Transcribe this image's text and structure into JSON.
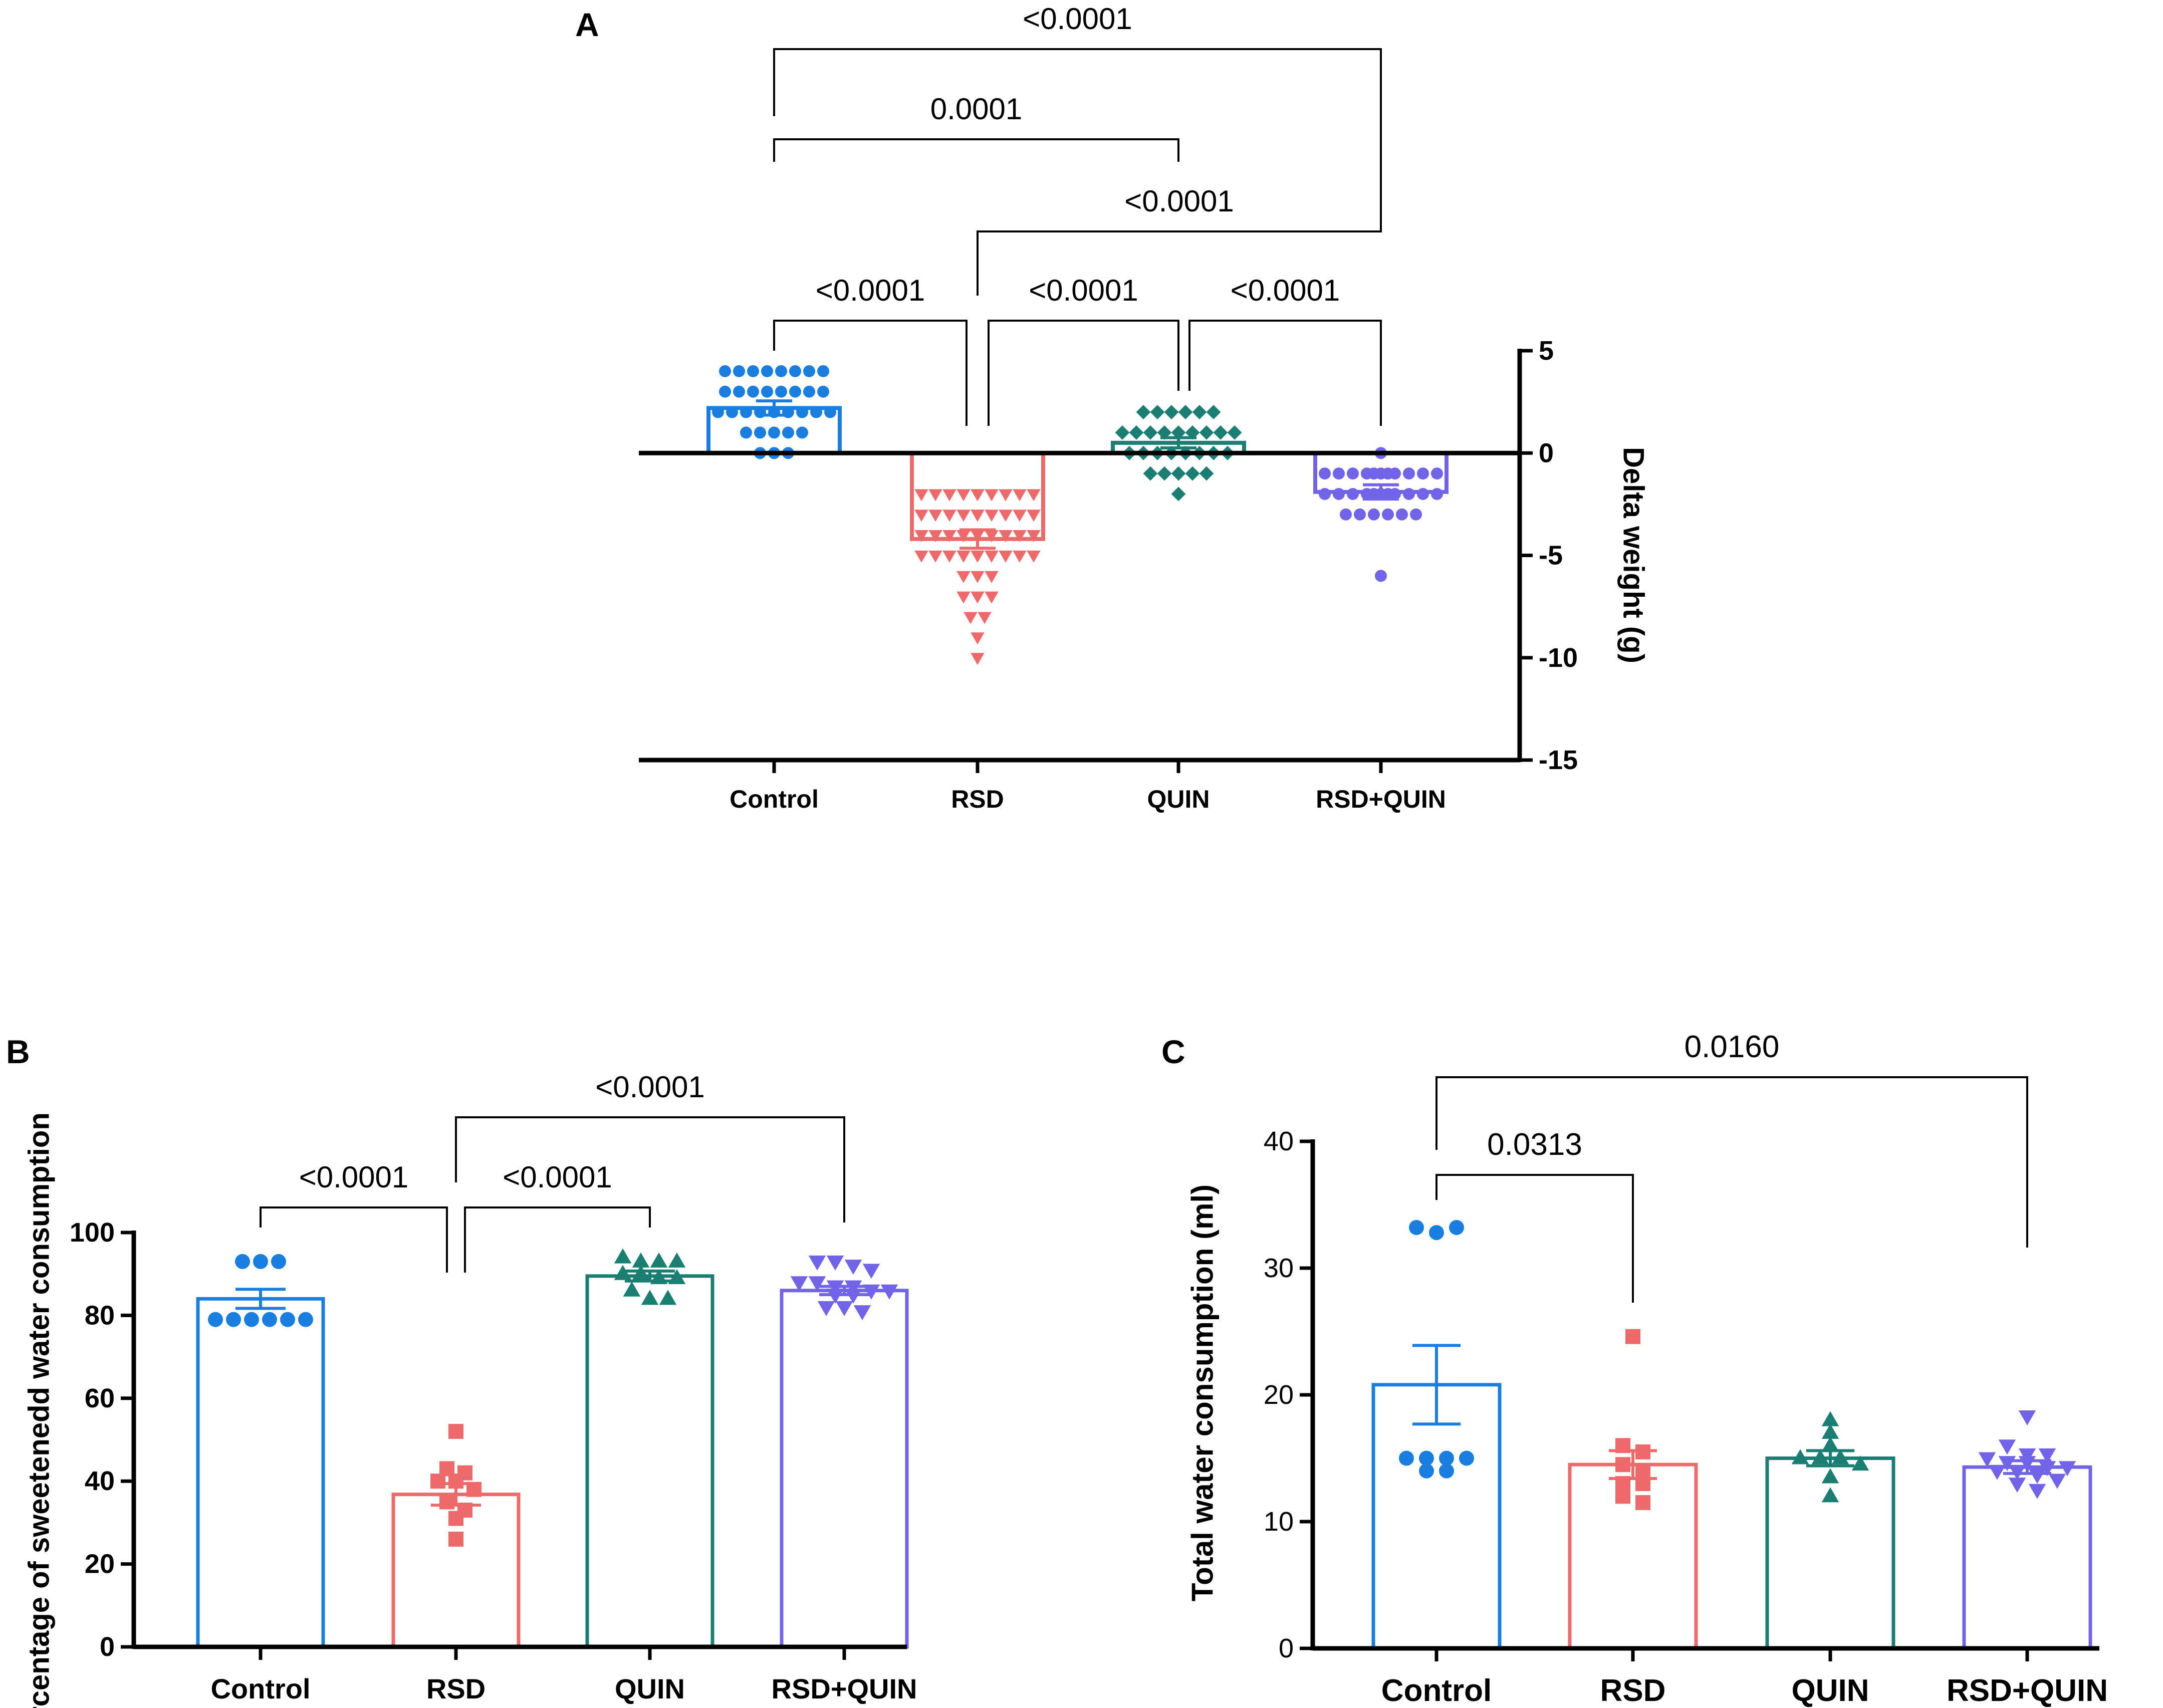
{
  "chart_data": [
    {
      "panel": "A",
      "type": "bar",
      "markers": "scatter",
      "categories": [
        "Control",
        "RSD",
        "QUIN",
        "RSD+QUIN"
      ],
      "means": [
        2.2,
        -4.2,
        0.5,
        -1.9
      ],
      "sem": [
        0.35,
        0.45,
        0.25,
        0.35
      ],
      "points": [
        [
          4,
          4,
          4,
          4,
          4,
          4,
          4,
          4,
          3,
          3,
          3,
          3,
          3,
          3,
          3,
          3,
          2,
          2,
          2,
          2,
          2,
          2,
          2,
          2,
          2,
          1,
          1,
          1,
          1,
          1,
          0,
          0,
          0
        ],
        [
          -2,
          -2,
          -2,
          -2,
          -2,
          -2,
          -2,
          -2,
          -2,
          -2,
          -3,
          -3,
          -3,
          -3,
          -3,
          -3,
          -3,
          -3,
          -3,
          -3,
          -4,
          -4,
          -4,
          -4,
          -4,
          -4,
          -4,
          -4,
          -4,
          -4,
          -4,
          -4,
          -5,
          -5,
          -5,
          -5,
          -5,
          -5,
          -5,
          -5,
          -5,
          -5,
          -5,
          -5,
          -6,
          -6,
          -6,
          -7,
          -7,
          -7,
          -8,
          -8,
          -9,
          -10
        ],
        [
          2,
          2,
          2,
          2,
          2,
          2,
          1,
          1,
          1,
          1,
          1,
          1,
          1,
          1,
          1,
          0,
          0,
          0,
          0,
          0,
          0,
          0,
          0,
          -1,
          -1,
          -1,
          -1,
          -1,
          -2
        ],
        [
          0,
          -1,
          -1,
          -1,
          -1,
          -1,
          -1,
          -1,
          -1,
          -1,
          -1,
          -1,
          -2,
          -2,
          -2,
          -2,
          -2,
          -2,
          -2,
          -2,
          -2,
          -2,
          -2,
          -3,
          -3,
          -3,
          -3,
          -3,
          -3,
          -6
        ]
      ],
      "ylim": [
        -15,
        5
      ],
      "yticks": [
        "5",
        "0",
        "-5",
        "-10",
        "-15"
      ],
      "ylabel": "Delta weight (g)",
      "yaxis_side": "right",
      "comparisons": [
        {
          "from": 0,
          "to": 3,
          "label": "<0.0001"
        },
        {
          "from": 0,
          "to": 2,
          "label": "0.0001"
        },
        {
          "from": 1,
          "to": 3,
          "label": "<0.0001"
        },
        {
          "from": 0,
          "to": 1,
          "label": "<0.0001"
        },
        {
          "from": 1,
          "to": 2,
          "label": "<0.0001"
        },
        {
          "from": 2,
          "to": 3,
          "label": "<0.0001"
        }
      ]
    },
    {
      "panel": "B",
      "type": "bar",
      "markers": "scatter",
      "categories": [
        "Control",
        "RSD",
        "QUIN",
        "RSD+QUIN"
      ],
      "means": [
        84,
        36.8,
        89.5,
        86
      ],
      "sem": [
        2.3,
        2.6,
        1.2,
        1.0
      ],
      "points": [
        [
          93,
          93,
          93,
          79,
          79,
          79,
          79,
          79,
          79
        ],
        [
          52,
          43,
          42,
          40,
          40,
          38,
          35,
          33,
          31,
          26
        ],
        [
          94,
          93,
          93,
          93,
          90,
          90,
          89,
          89,
          86,
          84,
          84
        ],
        [
          93,
          93,
          92,
          91,
          88,
          88,
          87,
          87,
          86,
          86,
          85,
          85,
          82,
          82,
          81
        ]
      ],
      "ylim": [
        0,
        100
      ],
      "yticks": [
        "0",
        "20",
        "40",
        "60",
        "80",
        "100"
      ],
      "ylabel": "Percentage of sweetenedd water consumption",
      "comparisons": [
        {
          "from": 1,
          "to": 3,
          "label": "<0.0001"
        },
        {
          "from": 0,
          "to": 1,
          "label": "<0.0001"
        },
        {
          "from": 1,
          "to": 2,
          "label": "<0.0001"
        }
      ]
    },
    {
      "panel": "C",
      "type": "bar",
      "markers": "scatter",
      "categories": [
        "Control",
        "RSD",
        "QUIN",
        "RSD+QUIN"
      ],
      "means": [
        20.8,
        14.5,
        15.0,
        14.3
      ],
      "sem": [
        3.1,
        1.1,
        0.6,
        0.5
      ],
      "points": [
        [
          33.2,
          32.8,
          33.2,
          15.0,
          15.0,
          15.0,
          15.0,
          14.0,
          14.0
        ],
        [
          24.6,
          16.0,
          15.5,
          14.5,
          14.0,
          13.0,
          13.0,
          12.0,
          11.5
        ],
        [
          18.0,
          17.0,
          16.0,
          15.0,
          15.0,
          15.0,
          14.5,
          13.5,
          12.0
        ],
        [
          18.3,
          16.0,
          15.3,
          15.3,
          15.0,
          14.7,
          14.7,
          14.3,
          14.3,
          14.0,
          14.0,
          13.7,
          13.3,
          13.0,
          12.5
        ]
      ],
      "ylim": [
        0,
        40
      ],
      "yticks": [
        "0",
        "10",
        "20",
        "30",
        "40"
      ],
      "ylabel": "Total water consumption (ml)",
      "comparisons": [
        {
          "from": 0,
          "to": 3,
          "label": "0.0160"
        },
        {
          "from": 0,
          "to": 1,
          "label": "0.0313"
        }
      ]
    }
  ],
  "panel_labels": {
    "a": "A",
    "b": "B",
    "c": "C"
  },
  "colors": {
    "control": "#1a7ee0",
    "rsd": "#ee6a6a",
    "quin": "#1a7f72",
    "rsd_quin": "#7264e8",
    "axis": "#000000"
  },
  "marker_shapes": [
    "circle",
    "square",
    "triangle-up",
    "triangle-down"
  ]
}
